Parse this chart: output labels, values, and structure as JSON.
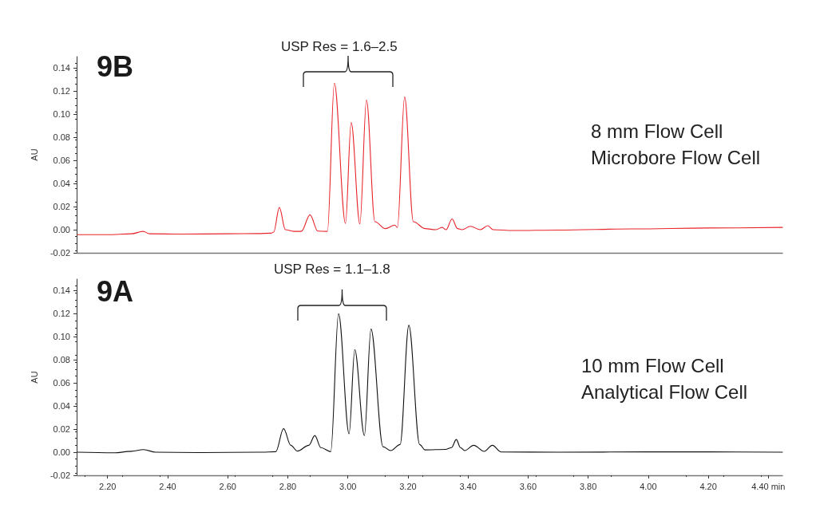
{
  "chart_data": [
    {
      "type": "line",
      "title": "9B",
      "ylabel": "AU",
      "annotations": [
        "USP Res = 1.6–2.5",
        "8 mm Flow Cell",
        "Microbore Flow Cell"
      ],
      "series": [
        {
          "color": "#e8232a",
          "x": [
            2.1,
            2.2,
            2.28,
            2.318,
            2.34,
            2.45,
            2.6,
            2.7,
            2.745,
            2.753,
            2.772,
            2.792,
            2.82,
            2.845,
            2.874,
            2.9,
            2.932,
            2.955,
            2.992,
            3.011,
            3.04,
            3.062,
            3.09,
            3.125,
            3.156,
            3.165,
            3.189,
            3.218,
            3.257,
            3.292,
            3.314,
            3.327,
            3.347,
            3.365,
            3.38,
            3.408,
            3.441,
            3.466,
            3.484,
            3.55,
            3.7,
            3.95,
            4.2,
            4.447
          ],
          "values": [
            -0.0043,
            -0.0043,
            -0.0035,
            -0.0014,
            -0.0035,
            -0.0038,
            -0.0035,
            -0.0033,
            -0.003,
            -0.002,
            0.0193,
            0.0,
            -0.0014,
            -0.0014,
            0.0129,
            -0.0012,
            -0.0014,
            0.127,
            0.0055,
            0.093,
            0.005,
            0.1125,
            0.007,
            0.001,
            0.004,
            0.002,
            0.115,
            0.007,
            0.001,
            0.0,
            0.002,
            0.0,
            0.0094,
            0.001,
            0.0,
            0.003,
            0.0,
            0.0035,
            0.0,
            -0.0007,
            -0.0003,
            0.0007,
            0.0015,
            0.002
          ]
        }
      ],
      "xlim": [
        2.097,
        4.447
      ],
      "ylim": [
        -0.02,
        0.15
      ],
      "yticks": [
        {
          "value": -0.02,
          "label": "-0.02"
        },
        {
          "value": 0,
          "label": "0.00"
        },
        {
          "value": 0.02,
          "label": "0.02"
        },
        {
          "value": 0.04,
          "label": "0.04"
        },
        {
          "value": 0.06,
          "label": "0.06"
        },
        {
          "value": 0.08,
          "label": "0.08"
        },
        {
          "value": 0.1,
          "label": "0.10"
        },
        {
          "value": 0.12,
          "label": "0.12"
        },
        {
          "value": 0.14,
          "label": "0.14"
        }
      ],
      "tick_labels": "y",
      "grid": false
    },
    {
      "type": "line",
      "title": "9A",
      "ylabel": "AU",
      "annotations": [
        "USP Res = 1.1–1.8",
        "10 mm Flow Cell",
        "Analytical Flow Cell"
      ],
      "series": [
        {
          "color": "#111111",
          "x": [
            2.1,
            2.22,
            2.28,
            2.32,
            2.36,
            2.5,
            2.7,
            2.713,
            2.76,
            2.786,
            2.81,
            2.832,
            2.87,
            2.89,
            2.91,
            2.943,
            2.969,
            3.004,
            3.023,
            3.055,
            3.077,
            3.117,
            3.143,
            3.174,
            3.203,
            3.239,
            3.257,
            3.327,
            3.345,
            3.361,
            3.375,
            3.389,
            3.419,
            3.454,
            3.481,
            3.511,
            3.7,
            4.0,
            4.2,
            4.447
          ],
          "values": [
            0.0,
            -0.0005,
            0.0008,
            0.0023,
            0.0,
            -0.0003,
            0.0,
            0.0,
            0.0005,
            0.0205,
            0.006,
            0.001,
            0.006,
            0.0145,
            0.004,
            0.0005,
            0.12,
            0.0159,
            0.0888,
            0.0145,
            0.1067,
            0.0048,
            0.0014,
            0.0067,
            0.11,
            0.0067,
            0.002,
            0.0025,
            0.004,
            0.011,
            0.004,
            0.0014,
            0.006,
            0.0007,
            0.006,
            0.0002,
            0.0,
            0.0003,
            0.0003,
            0.0
          ]
        }
      ],
      "xlim": [
        2.097,
        4.447
      ],
      "ylim": [
        -0.02,
        0.15
      ],
      "xticks": [
        {
          "value": 2.2,
          "label": "2.20"
        },
        {
          "value": 2.4,
          "label": "2.40"
        },
        {
          "value": 2.6,
          "label": "2.60"
        },
        {
          "value": 2.8,
          "label": "2.80"
        },
        {
          "value": 3.0,
          "label": "3.00"
        },
        {
          "value": 3.2,
          "label": "3.20"
        },
        {
          "value": 3.4,
          "label": "3.40"
        },
        {
          "value": 3.6,
          "label": "3.60"
        },
        {
          "value": 3.8,
          "label": "3.80"
        },
        {
          "value": 4.0,
          "label": "4.00"
        },
        {
          "value": 4.2,
          "label": "4.20"
        },
        {
          "value": 4.4,
          "label": "4.40 min"
        }
      ],
      "yticks": [
        {
          "value": -0.02,
          "label": "-0.02"
        },
        {
          "value": 0,
          "label": "0.00"
        },
        {
          "value": 0.02,
          "label": "0.02"
        },
        {
          "value": 0.04,
          "label": "0.04"
        },
        {
          "value": 0.06,
          "label": "0.06"
        },
        {
          "value": 0.08,
          "label": "0.08"
        },
        {
          "value": 0.1,
          "label": "0.10"
        },
        {
          "value": 0.12,
          "label": "0.12"
        },
        {
          "value": 0.14,
          "label": "0.14"
        }
      ],
      "grid": false
    }
  ]
}
